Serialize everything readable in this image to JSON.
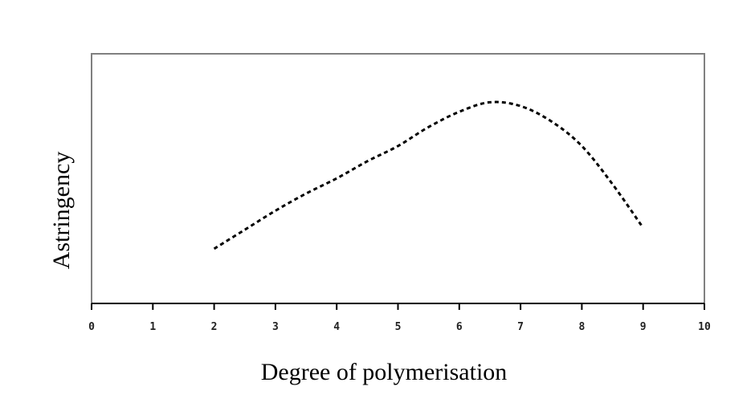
{
  "chart_data": {
    "type": "line",
    "title": "",
    "xlabel": "Degree of polymerisation",
    "ylabel": "Astringency",
    "xlim": [
      0,
      10
    ],
    "ylim": [
      0,
      1
    ],
    "xticks": [
      "0",
      "1",
      "2",
      "3",
      "4",
      "5",
      "6",
      "7",
      "8",
      "9",
      "10"
    ],
    "y_tick_labels_shown": false,
    "grid": false,
    "legend": "none",
    "line_style": "dashed",
    "colors": {
      "line": "#000000",
      "frame": "#808080",
      "x_axis": "#000000"
    },
    "series": [
      {
        "x": [
          2,
          2.5,
          3,
          3.5,
          4,
          4.5,
          5,
          5.5,
          6,
          6.5,
          7,
          7.5,
          8,
          8.5,
          9
        ],
        "y": [
          0.22,
          0.32,
          0.42,
          0.51,
          0.59,
          0.68,
          0.76,
          0.86,
          0.94,
          0.99,
          0.97,
          0.89,
          0.76,
          0.56,
          0.33
        ]
      }
    ]
  }
}
